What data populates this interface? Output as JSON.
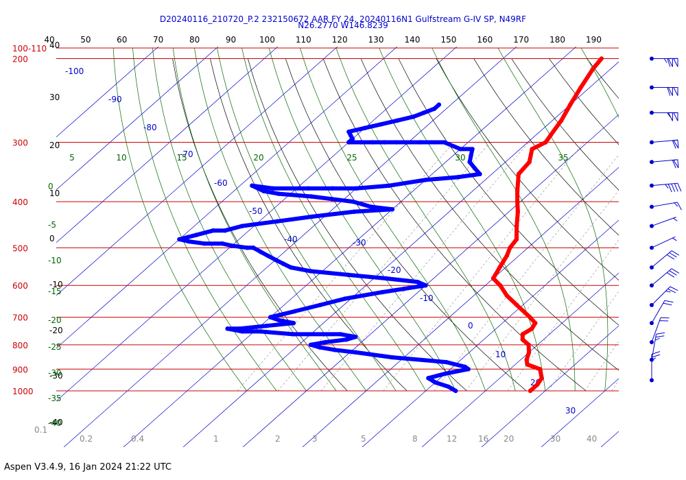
{
  "header": {
    "line1": "D20240116_210720_P.2 232150672 AAR FY 24, 20240116N1 Gulfstream G-IV SP, N49RF",
    "line2": "N26.2770 W146.8239"
  },
  "footer": "Aspen V3.4.9, 16 Jan 2024  21:22 UTC",
  "colors": {
    "temperature": "#ff0000",
    "dewpoint": "#0000ff",
    "isobar": "#cc0000",
    "isotherm": "#0000cc",
    "dry_adiabat": "#000000",
    "moist_adiabat": "#006600",
    "mixing_ratio": "#888888",
    "wind_barb": "#0000cc"
  },
  "chart_data": {
    "type": "scatter",
    "title": "",
    "ylim": [
      1000,
      190
    ],
    "pressure_labels": [
      "100-110",
      "200",
      "300",
      "400",
      "500",
      "600",
      "700",
      "800",
      "900",
      "1000"
    ],
    "pressure_values": [
      190,
      200,
      300,
      400,
      500,
      600,
      700,
      800,
      900,
      1000
    ],
    "top_scale_labels": [
      "40",
      "50",
      "60",
      "70",
      "80",
      "90",
      "100",
      "110",
      "120",
      "130",
      "140",
      "150",
      "160",
      "170",
      "180",
      "190"
    ],
    "left_scale_labels": [
      "40",
      "30",
      "20",
      "10",
      "0",
      "-10",
      "-20",
      "-30",
      "-40"
    ],
    "isotherm_labels": [
      "-100",
      "-90",
      "-80",
      "-70",
      "-60",
      "-50",
      "-40",
      "-30",
      "-20",
      "-10",
      "0",
      "10",
      "20",
      "30"
    ],
    "moist_adiabat_labels": [
      "5",
      "10",
      "15",
      "20",
      "25",
      "30",
      "35"
    ],
    "moist_adiabat_left_labels": [
      "0",
      "-5",
      "-10",
      "-15",
      "-20",
      "-25",
      "-30",
      "-35",
      "-40"
    ],
    "mixing_ratio_labels": [
      "0.1",
      "0.2",
      "0.4",
      "1",
      "2",
      "3",
      "5",
      "8",
      "12",
      "16",
      "20",
      "30",
      "40"
    ],
    "series": [
      {
        "series_key": "temperature",
        "pressure": [
          200,
          210,
          230,
          250,
          270,
          290,
          300,
          310,
          330,
          350,
          380,
          400,
          420,
          450,
          480,
          500,
          520,
          550,
          580,
          600,
          630,
          660,
          700,
          720,
          740,
          760,
          780,
          800,
          830,
          860,
          880,
          900,
          940,
          970,
          1000
        ],
        "temp": [
          -43.5,
          -43.0,
          -41.5,
          -40.0,
          -38.5,
          -37.5,
          -37.0,
          -38.0,
          -36.0,
          -35.5,
          -32.5,
          -30.5,
          -28.5,
          -26.0,
          -23.5,
          -23.0,
          -22.0,
          -21.0,
          -20.0,
          -17.5,
          -14.5,
          -11.0,
          -6.5,
          -4.5,
          -4.0,
          -4.5,
          -3.5,
          -1.5,
          0.0,
          1.0,
          2.0,
          5.0,
          7.0,
          7.5,
          7.5
        ]
      },
      {
        "series_key": "dewpoint",
        "pressure": [
          250,
          255,
          260,
          265,
          270,
          275,
          280,
          285,
          290,
          295,
          300,
          300,
          300,
          300,
          300,
          300,
          300,
          310,
          310,
          320,
          330,
          330,
          340,
          350,
          355,
          360,
          370,
          375,
          375,
          375,
          375,
          370,
          380,
          385,
          390,
          395,
          400,
          410,
          415,
          420,
          430,
          440,
          450,
          460,
          460,
          470,
          475,
          480,
          485,
          490,
          490,
          495,
          500,
          500,
          510,
          520,
          530,
          540,
          550,
          560,
          570,
          580,
          590,
          600,
          610,
          620,
          640,
          660,
          680,
          700,
          710,
          720,
          730,
          740,
          740,
          750,
          750,
          760,
          760,
          770,
          780,
          790,
          800,
          810,
          820,
          830,
          850,
          870,
          890,
          900,
          920,
          940,
          960,
          980,
          1000
        ],
        "temp": [
          -62,
          -62,
          -63,
          -64,
          -66,
          -68,
          -70,
          -72,
          -71,
          -70,
          -70,
          -68,
          -66,
          -64,
          -62,
          -58,
          -54,
          -50,
          -48,
          -47,
          -46,
          -46,
          -44,
          -42,
          -45,
          -50,
          -55,
          -60,
          -64,
          -68,
          -74,
          -78,
          -75,
          -72,
          -66,
          -62,
          -58,
          -54,
          -50,
          -56,
          -62,
          -67,
          -72,
          -74,
          -76,
          -78,
          -79,
          -80,
          -78,
          -75,
          -72,
          -70,
          -67,
          -66,
          -64,
          -62,
          -60,
          -58,
          -56,
          -52,
          -45,
          -38,
          -32,
          -30,
          -33,
          -36,
          -41,
          -44,
          -47,
          -50,
          -48,
          -45,
          -49,
          -53,
          -55,
          -52,
          -49,
          -43,
          -35,
          -32,
          -33,
          -36,
          -38,
          -36,
          -33,
          -29,
          -22,
          -12,
          -8,
          -7,
          -10,
          -12,
          -10,
          -7,
          -5
        ]
      }
    ],
    "wind_barbs": [
      {
        "pressure": 200,
        "direction": 270,
        "speed": 115
      },
      {
        "pressure": 230,
        "direction": 270,
        "speed": 110
      },
      {
        "pressure": 260,
        "direction": 270,
        "speed": 105
      },
      {
        "pressure": 300,
        "direction": 265,
        "speed": 60
      },
      {
        "pressure": 330,
        "direction": 265,
        "speed": 60
      },
      {
        "pressure": 370,
        "direction": 265,
        "speed": 45
      },
      {
        "pressure": 410,
        "direction": 260,
        "speed": 15
      },
      {
        "pressure": 450,
        "direction": 250,
        "speed": 5
      },
      {
        "pressure": 500,
        "direction": 245,
        "speed": 5
      },
      {
        "pressure": 550,
        "direction": 230,
        "speed": 30
      },
      {
        "pressure": 600,
        "direction": 230,
        "speed": 30
      },
      {
        "pressure": 660,
        "direction": 225,
        "speed": 25
      },
      {
        "pressure": 720,
        "direction": 210,
        "speed": 20
      },
      {
        "pressure": 790,
        "direction": 200,
        "speed": 20
      },
      {
        "pressure": 860,
        "direction": 190,
        "speed": 25
      },
      {
        "pressure": 950,
        "direction": 180,
        "speed": 25
      }
    ]
  }
}
